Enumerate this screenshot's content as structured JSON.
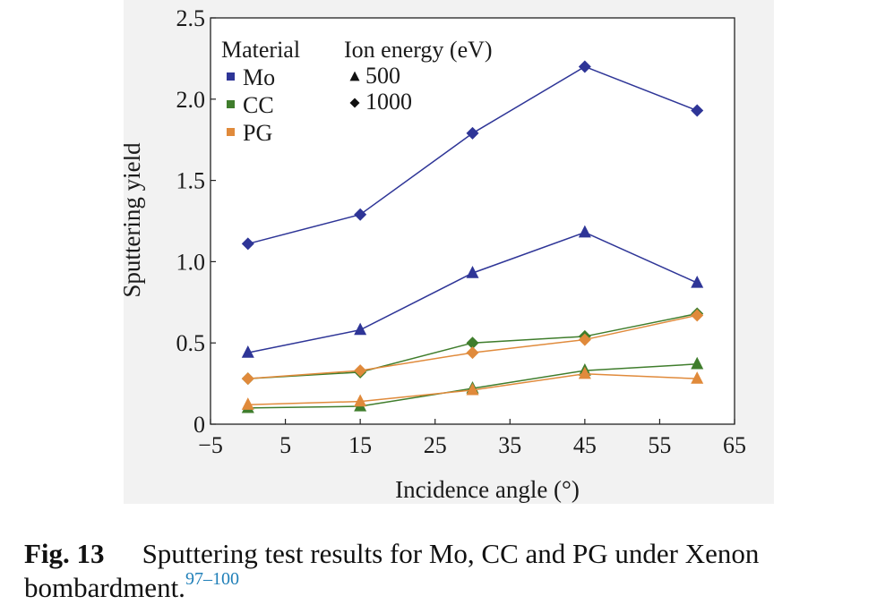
{
  "chart_data": {
    "type": "line",
    "title": "",
    "xlabel": "Incidence angle (°)",
    "ylabel": "Sputtering yield",
    "xlim": [
      -5,
      65
    ],
    "ylim": [
      0,
      2.5
    ],
    "xticks": [
      "−5",
      "5",
      "15",
      "25",
      "35",
      "45",
      "55",
      "65"
    ],
    "xtick_values": [
      -5,
      5,
      15,
      25,
      35,
      45,
      55,
      65
    ],
    "yticks": [
      "0",
      "0.5",
      "1.0",
      "1.5",
      "2.0",
      "2.5"
    ],
    "ytick_values": [
      0,
      0.5,
      1.0,
      1.5,
      2.0,
      2.5
    ],
    "grid": false,
    "legend": {
      "placement": "top-left",
      "material_title": "Material",
      "materials": [
        {
          "label": "Mo",
          "color": "#2e3597"
        },
        {
          "label": "CC",
          "color": "#3f7d2c"
        },
        {
          "label": "PG",
          "color": "#e08a3b"
        }
      ],
      "energy_title": "Ion energy (eV)",
      "energies": [
        {
          "label": "500",
          "marker": "triangle"
        },
        {
          "label": "1000",
          "marker": "diamond"
        }
      ]
    },
    "series": [
      {
        "material": "Mo",
        "energy": "1000",
        "marker": "diamond",
        "color": "#2e3597",
        "x": [
          0,
          15,
          30,
          45,
          60
        ],
        "y": [
          1.11,
          1.29,
          1.79,
          2.2,
          1.93
        ]
      },
      {
        "material": "Mo",
        "energy": "500",
        "marker": "triangle",
        "color": "#2e3597",
        "x": [
          0,
          15,
          30,
          45,
          60
        ],
        "y": [
          0.44,
          0.58,
          0.93,
          1.18,
          0.87
        ]
      },
      {
        "material": "CC",
        "energy": "1000",
        "marker": "diamond",
        "color": "#3f7d2c",
        "x": [
          0,
          15,
          30,
          45,
          60
        ],
        "y": [
          0.28,
          0.32,
          0.5,
          0.54,
          0.68
        ]
      },
      {
        "material": "PG",
        "energy": "1000",
        "marker": "diamond",
        "color": "#e08a3b",
        "x": [
          0,
          15,
          30,
          45,
          60
        ],
        "y": [
          0.28,
          0.33,
          0.44,
          0.52,
          0.67
        ]
      },
      {
        "material": "CC",
        "energy": "500",
        "marker": "triangle",
        "color": "#3f7d2c",
        "x": [
          0,
          15,
          30,
          45,
          60
        ],
        "y": [
          0.1,
          0.11,
          0.22,
          0.33,
          0.37
        ]
      },
      {
        "material": "PG",
        "energy": "500",
        "marker": "triangle",
        "color": "#e08a3b",
        "x": [
          0,
          15,
          30,
          45,
          60
        ],
        "y": [
          0.12,
          0.14,
          0.21,
          0.31,
          0.28
        ]
      }
    ]
  },
  "caption": {
    "label": "Fig. 13",
    "text": "Sputtering test results for Mo, CC and PG under Xenon bombardment.",
    "refs": "97–100"
  }
}
